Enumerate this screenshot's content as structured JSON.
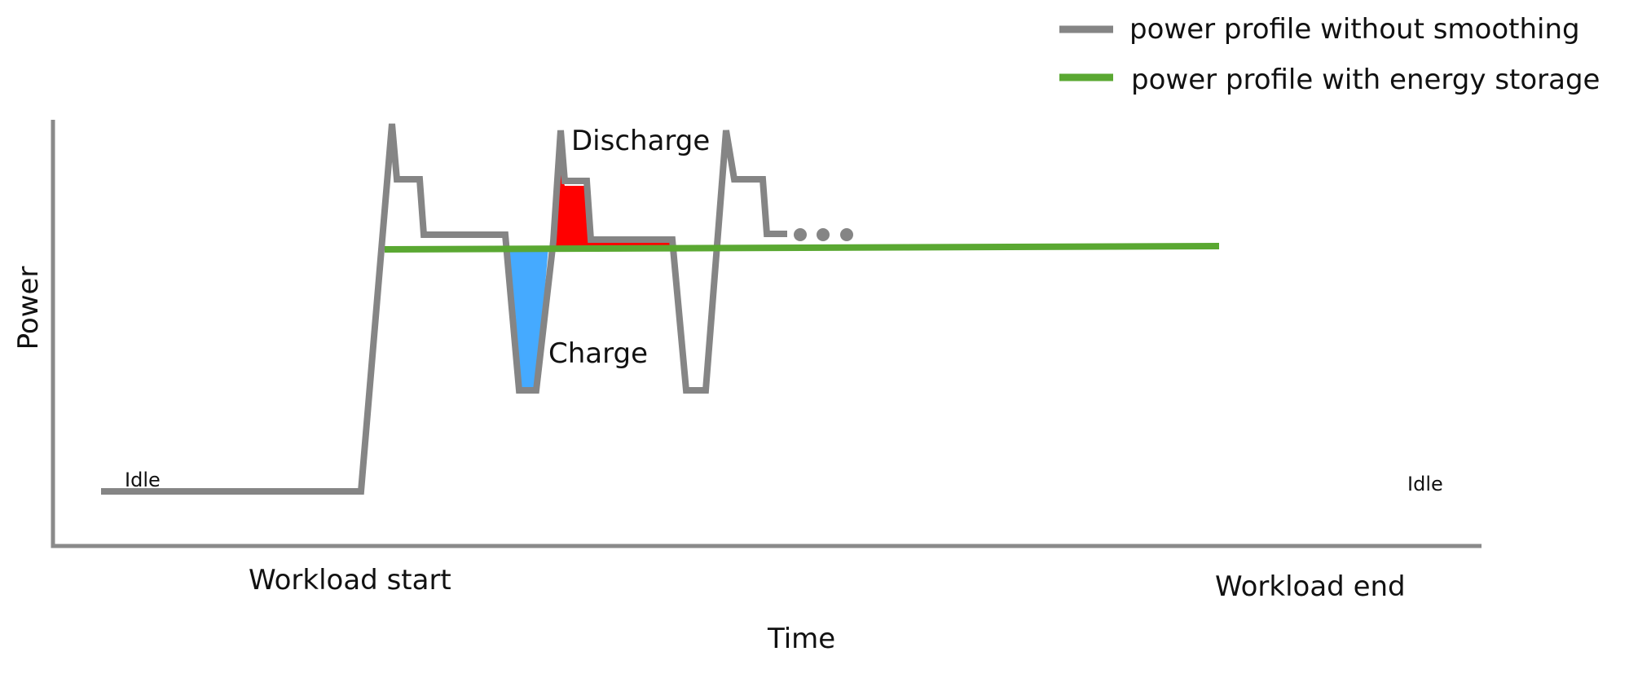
{
  "legend": {
    "items": [
      {
        "label": "power profile without smoothing",
        "color": "#858585"
      },
      {
        "label": "power profile with energy storage",
        "color": "#5aa832"
      }
    ]
  },
  "axes": {
    "y_label": "Power",
    "x_label": "Time"
  },
  "annotations": {
    "idle_left": "Idle",
    "idle_right": "Idle",
    "workload_start": "Workload start",
    "workload_end": "Workload end",
    "discharge": "Discharge",
    "charge": "Charge"
  },
  "colors": {
    "discharge_fill": "#ff0000",
    "charge_fill": "#45aaff",
    "ellipsis_dots": "#858585"
  }
}
